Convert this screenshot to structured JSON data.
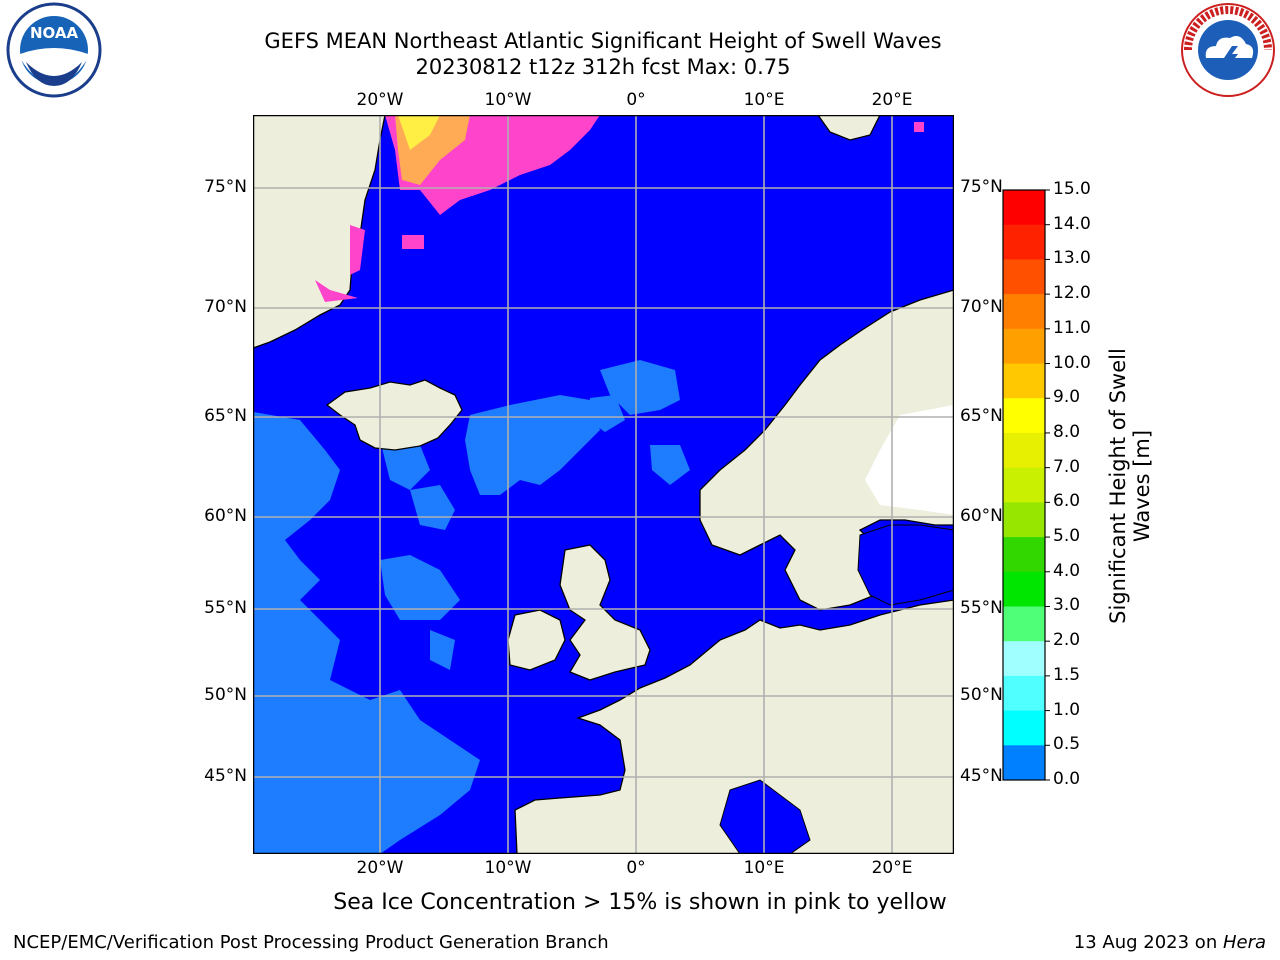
{
  "title_line1": "GEFS MEAN Northeast Atlantic Significant Height of Swell Waves",
  "title_line2": "20230812 t12z 312h fcst   Max: 0.75",
  "caption": "Sea Ice Concentration > 15% is shown in pink to yellow",
  "footer_left": "NCEP/EMC/Verification Post Processing Product Generation Branch",
  "footer_right_date": "13 Aug 2023 on ",
  "footer_right_host": "Hera",
  "logos": {
    "left": {
      "icon": "noaa-logo",
      "text": "NOAA"
    },
    "right": {
      "icon": "nws-logo",
      "text": "NATIONAL WEATHER SERVICE"
    }
  },
  "map": {
    "lon_labels": [
      "20°W",
      "10°W",
      "0°",
      "10°E",
      "20°E"
    ],
    "lat_labels": [
      "75°N",
      "70°N",
      "65°N",
      "60°N",
      "55°N",
      "50°N",
      "45°N"
    ],
    "colors": {
      "ocean": "#0000ff",
      "land": "#eeeedd",
      "grid": "#b0b0b0",
      "low_swell": "#1e7cff",
      "sea_ice": "#ff44cc"
    }
  },
  "colorbar": {
    "title_line1": "Significant Height of Swell",
    "title_line2": "Waves [m]",
    "ticks": [
      "15.0",
      "14.0",
      "13.0",
      "12.0",
      "11.0",
      "10.0",
      "9.0",
      "8.0",
      "7.0",
      "6.0",
      "5.0",
      "4.0",
      "3.0",
      "2.0",
      "1.5",
      "1.0",
      "0.5",
      "0.0"
    ],
    "colors": [
      "#ff0000",
      "#ff2200",
      "#ff5000",
      "#ff8000",
      "#ffa000",
      "#ffc800",
      "#ffff00",
      "#e6f000",
      "#c8f000",
      "#96e600",
      "#32d700",
      "#00e600",
      "#50ff78",
      "#a0ffff",
      "#50ffff",
      "#00ffff",
      "#0080ff",
      "#0000ff"
    ]
  }
}
